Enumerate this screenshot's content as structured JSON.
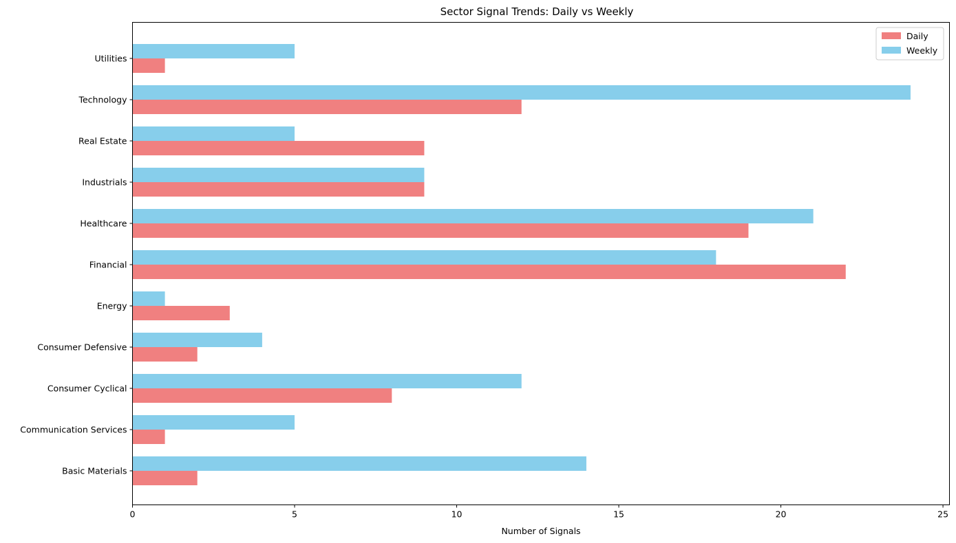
{
  "chart_data": {
    "type": "bar",
    "orientation": "horizontal",
    "title": "Sector Signal Trends: Daily vs Weekly",
    "xlabel": "Number of Signals",
    "ylabel": "",
    "xlim": [
      0,
      25.2
    ],
    "xticks": [
      0,
      5,
      10,
      15,
      20,
      25
    ],
    "grid": false,
    "legend_position": "top-right",
    "categories": [
      "Basic Materials",
      "Communication Services",
      "Consumer Cyclical",
      "Consumer Defensive",
      "Energy",
      "Financial",
      "Healthcare",
      "Industrials",
      "Real Estate",
      "Technology",
      "Utilities"
    ],
    "series": [
      {
        "name": "Daily",
        "color": "#f08080",
        "values": [
          2,
          1,
          8,
          2,
          3,
          22,
          19,
          9,
          9,
          12,
          1
        ]
      },
      {
        "name": "Weekly",
        "color": "#87ceeb",
        "values": [
          14,
          5,
          12,
          4,
          1,
          18,
          21,
          9,
          5,
          24,
          5
        ]
      }
    ]
  }
}
